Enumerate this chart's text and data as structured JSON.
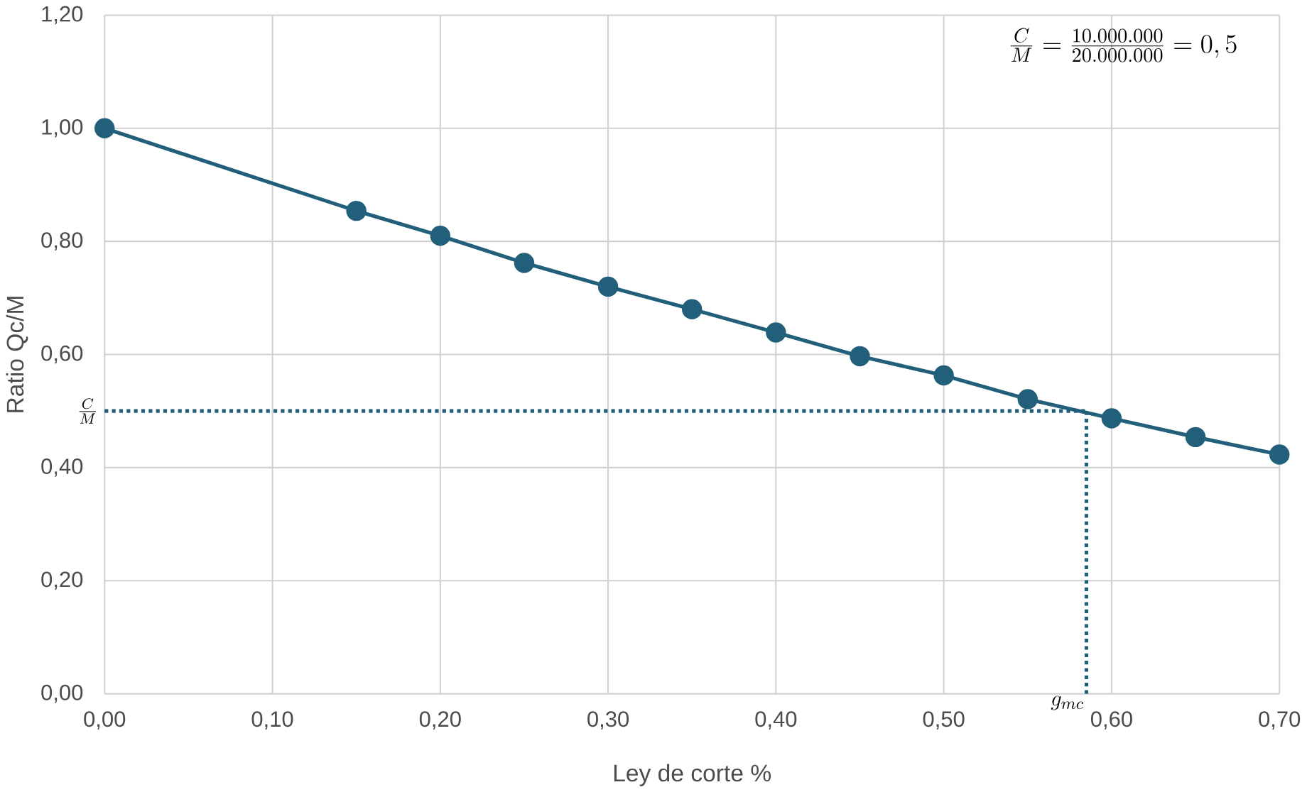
{
  "chart_data": {
    "type": "line",
    "xlabel": "Ley de corte %",
    "ylabel": "Ratio Qc/M",
    "x": [
      0,
      0.15,
      0.2,
      0.25,
      0.3,
      0.35,
      0.4,
      0.45,
      0.5,
      0.55,
      0.6,
      0.65,
      0.7
    ],
    "series": [
      {
        "color": "#215f7a",
        "values": [
          1.0,
          0.854,
          0.81,
          0.762,
          0.72,
          0.68,
          0.639,
          0.597,
          0.563,
          0.521,
          0.487,
          0.454,
          0.423
        ]
      }
    ],
    "xlim": [
      0,
      0.7
    ],
    "ylim": [
      0,
      1.2
    ],
    "xticks": [
      {
        "value": 0,
        "label": "0,00"
      },
      {
        "value": 0.1,
        "label": "0,10"
      },
      {
        "value": 0.2,
        "label": "0,20"
      },
      {
        "value": 0.3,
        "label": "0,30"
      },
      {
        "value": 0.4,
        "label": "0,40"
      },
      {
        "value": 0.5,
        "label": "0,50"
      },
      {
        "value": 0.6,
        "label": "0,60"
      },
      {
        "value": 0.7,
        "label": "0,70"
      }
    ],
    "yticks": [
      {
        "value": 0,
        "label": "0,00"
      },
      {
        "value": 0.2,
        "label": "0,20"
      },
      {
        "value": 0.4,
        "label": "0,40"
      },
      {
        "value": 0.6,
        "label": "0,60"
      },
      {
        "value": 0.8,
        "label": "0,80"
      },
      {
        "value": 1.0,
        "label": "1,00"
      },
      {
        "value": 1.2,
        "label": "1,20"
      }
    ],
    "ref_lines": [
      {
        "axis": "y",
        "value": 0.5,
        "label": "\\frac{C}{M}",
        "color": "#215f7a",
        "line_style": "dotted"
      },
      {
        "axis": "x",
        "value": 0.585,
        "label": "g_{mc}",
        "color": "#215f7a",
        "line_style": "dotted"
      }
    ],
    "annotations": [
      "\\frac{C}{M}=\\frac{10.000.000}{20.000.000}=0,5"
    ],
    "grid": true,
    "marker": "circle",
    "line_style": "solid"
  }
}
